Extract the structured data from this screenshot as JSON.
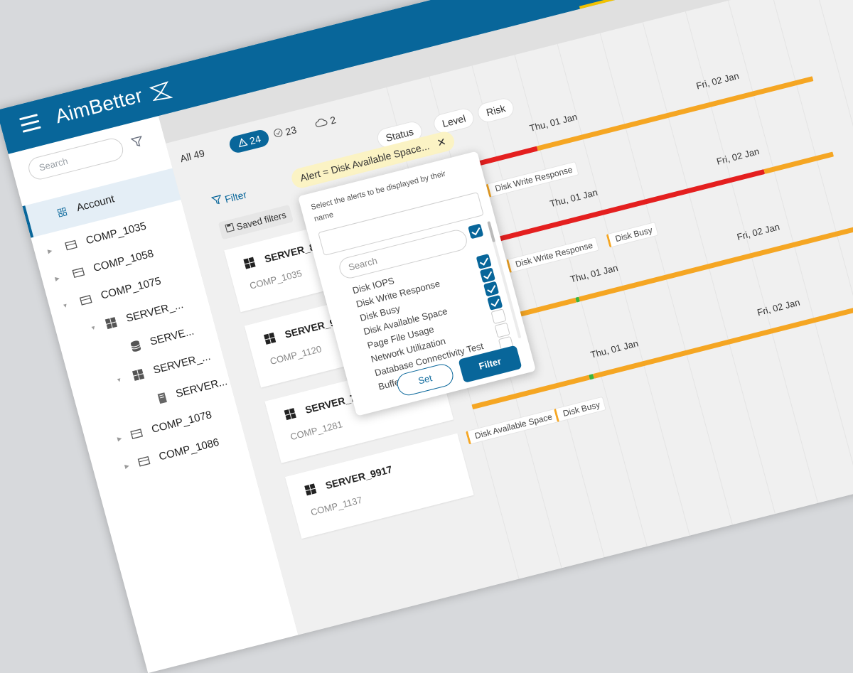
{
  "app": {
    "brand": "AimBetter"
  },
  "sidebar": {
    "search_placeholder": "Search",
    "items": [
      {
        "label": "Account"
      },
      {
        "label": "COMP_1035"
      },
      {
        "label": "COMP_1058"
      },
      {
        "label": "COMP_1075"
      },
      {
        "label": "SERVER_..."
      },
      {
        "label": "SERVE..."
      },
      {
        "label": "SERVER_..."
      },
      {
        "label": "SERVER..."
      },
      {
        "label": "COMP_1078"
      },
      {
        "label": "COMP_1086"
      }
    ]
  },
  "counts": {
    "all_label": "All",
    "all_value": "49",
    "alerts_value": "24",
    "ok_value": "23",
    "cloud_value": "2"
  },
  "chips": {
    "status": "Status",
    "level": "Level",
    "risk": "Risk"
  },
  "filter": {
    "link_label": "Filter",
    "active_chip": "Alert = Disk Available Space...",
    "saved_filters": "Saved filters"
  },
  "popup": {
    "hint": "Select the alerts to be displayed by their name",
    "search_placeholder": "Search",
    "options": [
      {
        "label": "Disk IOPS",
        "checked": true
      },
      {
        "label": "Disk Write Response",
        "checked": true
      },
      {
        "label": "Disk Busy",
        "checked": true
      },
      {
        "label": "Disk Available Space",
        "checked": true
      },
      {
        "label": "Page File Usage",
        "checked": false
      },
      {
        "label": "Network Utilization",
        "checked": false
      },
      {
        "label": "Database Connectivity Test",
        "checked": false
      },
      {
        "label": "Buffer Cache Hit",
        "checked": false
      }
    ],
    "set_label": "Set",
    "filter_label": "Filter"
  },
  "servers": [
    {
      "name": "SERVER_876",
      "comp": "COMP_1035"
    },
    {
      "name": "SERVER_978",
      "comp": "COMP_1120"
    },
    {
      "name": "SERVER_726",
      "comp": "COMP_1281"
    },
    {
      "name": "SERVER_9917",
      "comp": "COMP_1137"
    }
  ],
  "timeline": {
    "dates": [
      "Thu, 01 Jan",
      "Fri, 02 Jan"
    ],
    "tags": [
      "Disk Write Response",
      "Disk Busy",
      "Disk Available Space"
    ],
    "colors": {
      "ok": "#3cb43c",
      "warn": "#f5a623",
      "crit": "#e41f1f"
    }
  }
}
